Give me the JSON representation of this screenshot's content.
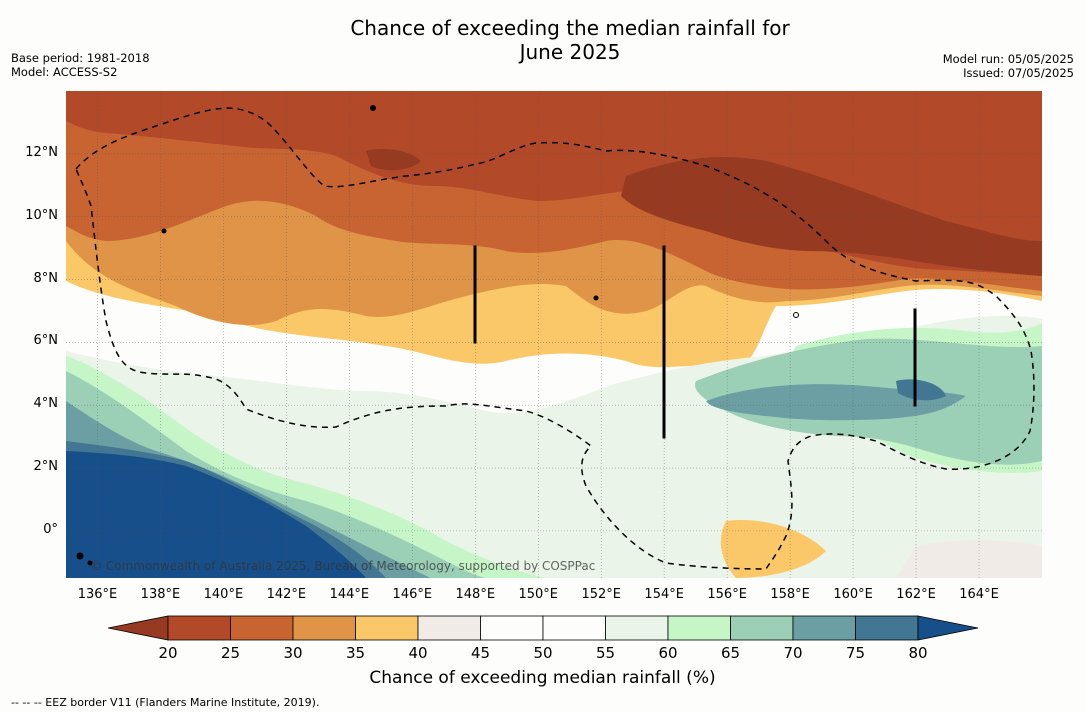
{
  "title": {
    "line1": "Chance of exceeding the median rainfall for",
    "line2": "June 2025"
  },
  "meta_left": {
    "base_period": "Base period: 1981-2018",
    "model": "Model: ACCESS-S2"
  },
  "meta_right": {
    "model_run": "Model run: 05/05/2025",
    "issued": "Issued: 07/05/2025"
  },
  "map": {
    "lon_range": [
      135,
      166
    ],
    "lat_range": [
      -1.5,
      14
    ],
    "x_ticks": [
      "136°E",
      "138°E",
      "140°E",
      "142°E",
      "144°E",
      "146°E",
      "148°E",
      "150°E",
      "152°E",
      "154°E",
      "156°E",
      "158°E",
      "160°E",
      "162°E",
      "164°E"
    ],
    "x_tick_values": [
      136,
      138,
      140,
      142,
      144,
      146,
      148,
      150,
      152,
      154,
      156,
      158,
      160,
      162,
      164
    ],
    "y_ticks": [
      "12°N",
      "10°N",
      "8°N",
      "6°N",
      "4°N",
      "2°N",
      "0°"
    ],
    "y_tick_values": [
      12,
      10,
      8,
      6,
      4,
      2,
      0
    ],
    "credit": "© Commonwealth of Australia 2025, Bureau of Meteorology, supported by COSPPac",
    "eez_style": "dashed black",
    "grid": "dotted"
  },
  "colorbar": {
    "title": "Chance of exceeding median rainfall (%)",
    "labels": [
      "20",
      "25",
      "30",
      "35",
      "40",
      "45",
      "50",
      "55",
      "60",
      "65",
      "70",
      "75",
      "80"
    ],
    "colors": {
      "below20": "#973a22",
      "20-25": "#b24a29",
      "25-30": "#c86432",
      "30-35": "#df9448",
      "35-40": "#fbc869",
      "40-45": "#f0ebe6",
      "45-50": "#fdfdfb",
      "50-55": "#fdfdfb",
      "55-60": "#eaf4e8",
      "60-65": "#c6f5c8",
      "65-70": "#9bcfb6",
      "70-75": "#6c9fa3",
      "75-80": "#427692",
      "above80": "#174f8a"
    }
  },
  "footnote": "--  --  -- EEZ border V11 (Flanders Marine Institute, 2019)."
}
